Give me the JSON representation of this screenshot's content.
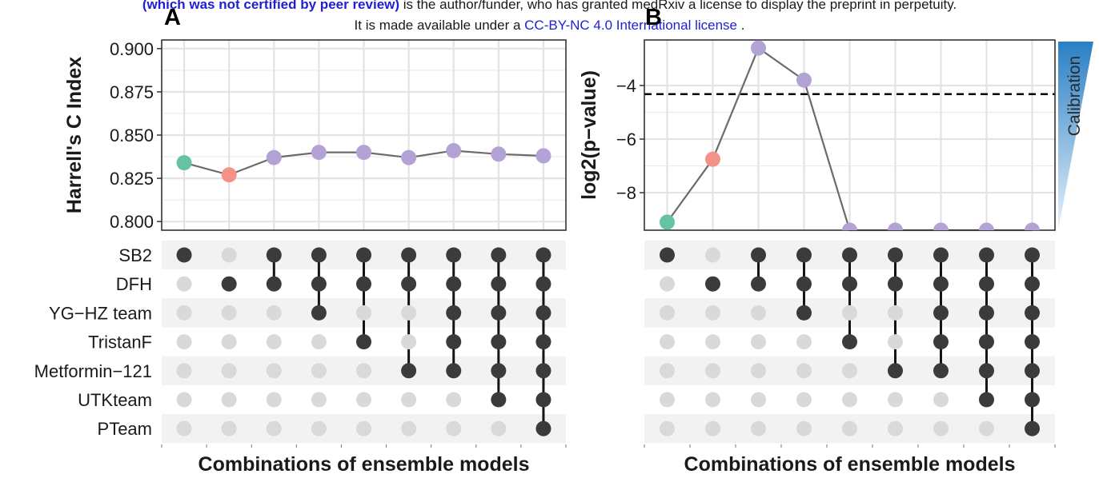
{
  "banner": {
    "line1_bold": "(which was not certified by peer review)",
    "line1_rest": " is the author/funder, who has granted medRxiv a license to display the preprint in perpetuity.",
    "line2_pre": "It is made available under a ",
    "line2_link": "CC-BY-NC 4.0 International license",
    "line2_post": " ."
  },
  "chart_data": [
    {
      "panel": "A",
      "type": "line",
      "ylabel": "Harrell's C Index",
      "xlabel": "Combinations of ensemble models",
      "ylim": [
        0.795,
        0.905
      ],
      "yticks": [
        0.8,
        0.825,
        0.85,
        0.875,
        0.9
      ],
      "ytick_labels": [
        "0.800",
        "0.825",
        "0.850",
        "0.875",
        "0.900"
      ],
      "x": [
        1,
        2,
        3,
        4,
        5,
        6,
        7,
        8,
        9
      ],
      "values": [
        0.834,
        0.827,
        0.837,
        0.84,
        0.84,
        0.837,
        0.841,
        0.839,
        0.838
      ],
      "grid": true
    },
    {
      "panel": "B",
      "type": "line",
      "ylabel": "log2(p−value)",
      "xlabel": "Combinations of ensemble models",
      "ylim": [
        -9.4,
        -2.3
      ],
      "yticks": [
        -8,
        -6,
        -4
      ],
      "ytick_labels": [
        "−8",
        "−6",
        "−4"
      ],
      "x": [
        1,
        2,
        3,
        4,
        5,
        6,
        7,
        8,
        9
      ],
      "values": [
        -9.1,
        -6.75,
        -2.6,
        -3.8,
        -9.4,
        -9.4,
        -9.4,
        -9.4,
        -9.4
      ],
      "threshold": -4.32,
      "legend_label": "Calibration",
      "grid": true
    }
  ],
  "upset": {
    "models": [
      "SB2",
      "DFH",
      "YG−HZ team",
      "TristanF",
      "Metformin−121",
      "UTKteam",
      "PTeam"
    ],
    "combinations": [
      [
        1,
        0,
        0,
        0,
        0,
        0,
        0
      ],
      [
        0,
        1,
        0,
        0,
        0,
        0,
        0
      ],
      [
        1,
        1,
        0,
        0,
        0,
        0,
        0
      ],
      [
        1,
        1,
        1,
        0,
        0,
        0,
        0
      ],
      [
        1,
        1,
        0,
        1,
        0,
        0,
        0
      ],
      [
        1,
        1,
        0,
        0,
        1,
        0,
        0
      ],
      [
        1,
        1,
        1,
        1,
        1,
        0,
        0
      ],
      [
        1,
        1,
        1,
        1,
        1,
        1,
        0
      ],
      [
        1,
        1,
        1,
        1,
        1,
        1,
        1
      ]
    ]
  },
  "combo_colors": [
    "#66c2a5",
    "#f4928a",
    "#b3a2d4",
    "#b3a2d4",
    "#b3a2d4",
    "#b3a2d4",
    "#b3a2d4",
    "#b3a2d4",
    "#b3a2d4"
  ]
}
